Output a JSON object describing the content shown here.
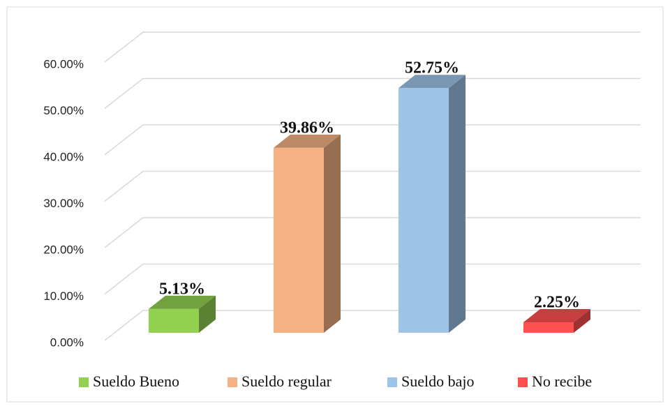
{
  "chart_data": {
    "type": "bar3d",
    "categories": [
      "Sueldo Bueno",
      "Sueldo regular",
      "Sueldo bajo",
      "No recibe"
    ],
    "values": [
      5.13,
      39.86,
      52.75,
      2.25
    ],
    "value_labels": [
      "5.13%",
      "39.86%",
      "52.75%",
      "2.25%"
    ],
    "colors": [
      "#92d050",
      "#f4b183",
      "#9dc3e6",
      "#ff5050"
    ],
    "ylim": [
      0,
      60
    ],
    "yticks": [
      {
        "value": 0,
        "label": "0.00%"
      },
      {
        "value": 10,
        "label": "10.00%"
      },
      {
        "value": 20,
        "label": "20.00%"
      },
      {
        "value": 30,
        "label": "30.00%"
      },
      {
        "value": 40,
        "label": "40.00%"
      },
      {
        "value": 50,
        "label": "50.00%"
      },
      {
        "value": 60,
        "label": "60.00%"
      }
    ],
    "grid": true,
    "legend": "bottom"
  }
}
